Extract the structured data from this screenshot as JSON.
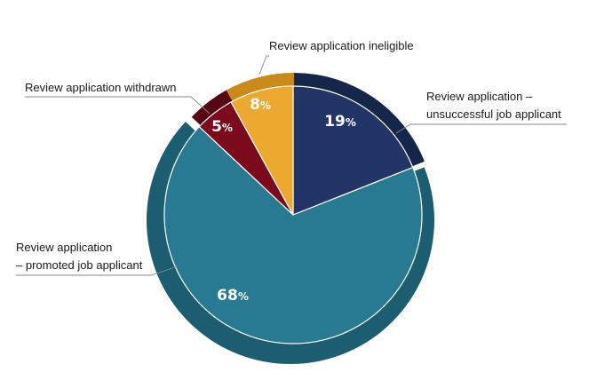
{
  "chart_data": {
    "type": "pie",
    "start_angle_deg": 0,
    "direction": "clockwise",
    "slices": [
      {
        "label_lines": [
          "Review application –",
          "unsuccessful job applicant"
        ],
        "value": 19,
        "color": "#223566",
        "shadow_color": "#16254a",
        "exploded": false
      },
      {
        "label_lines": [
          "Review application",
          "– promoted job applicant"
        ],
        "value": 68,
        "color": "#287a93",
        "shadow_color": "#1c5d72",
        "exploded": true
      },
      {
        "label_lines": [
          "Review application withdrawn"
        ],
        "value": 5,
        "color": "#7a0a1c",
        "shadow_color": "#560612",
        "exploded": false
      },
      {
        "label_lines": [
          "Review application ineligible"
        ],
        "value": 8,
        "color": "#eca92f",
        "shadow_color": "#c98a18",
        "exploded": false
      }
    ],
    "value_suffix": "%",
    "legend": "none"
  }
}
